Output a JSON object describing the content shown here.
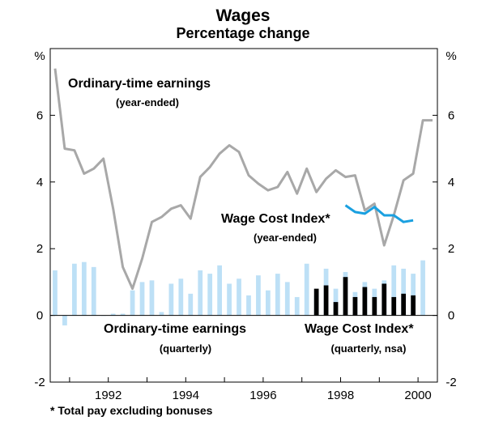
{
  "chart_data": {
    "type": "line+bar",
    "title": "Wages",
    "subtitle": "Percentage change",
    "y_unit_left": "%",
    "y_unit_right": "%",
    "ylim": [
      -2,
      8
    ],
    "xlim": [
      1990.5,
      2000.5
    ],
    "y_ticks": [
      -2,
      0,
      2,
      4,
      6
    ],
    "x_ticks": [
      1992,
      1994,
      1996,
      1998,
      2000
    ],
    "x_tick_labels": [
      "1992",
      "1994",
      "1996",
      "1998",
      "2000"
    ],
    "y_tick_labels": [
      "-2",
      "0",
      "2",
      "4",
      "6"
    ],
    "series": [
      {
        "name": "Ordinary-time earnings (year-ended)",
        "kind": "line",
        "color": "#a8a8a8",
        "x": [
          1990.625,
          1990.875,
          1991.125,
          1991.375,
          1991.625,
          1991.875,
          1992.125,
          1992.375,
          1992.625,
          1992.875,
          1993.125,
          1993.375,
          1993.625,
          1993.875,
          1994.125,
          1994.375,
          1994.625,
          1994.875,
          1995.125,
          1995.375,
          1995.625,
          1995.875,
          1996.125,
          1996.375,
          1996.625,
          1996.875,
          1997.125,
          1997.375,
          1997.625,
          1997.875,
          1998.125,
          1998.375,
          1998.625,
          1998.875,
          1999.125,
          1999.375,
          1999.625,
          1999.875,
          2000.125,
          2000.375
        ],
        "values": [
          7.4,
          5.0,
          4.95,
          4.25,
          4.4,
          4.7,
          3.2,
          1.45,
          0.8,
          1.7,
          2.8,
          2.95,
          3.2,
          3.3,
          2.9,
          4.15,
          4.45,
          4.85,
          5.1,
          4.9,
          4.2,
          3.95,
          3.75,
          3.85,
          4.3,
          3.65,
          4.4,
          3.7,
          4.1,
          4.35,
          4.15,
          4.2,
          3.15,
          3.35,
          2.1,
          3.0,
          4.05,
          4.25,
          5.85,
          5.85
        ]
      },
      {
        "name": "Wage Cost Index* (year-ended)",
        "kind": "line",
        "color": "#1aa0e0",
        "x": [
          1998.125,
          1998.375,
          1998.625,
          1998.875,
          1999.125,
          1999.375,
          1999.625,
          1999.875
        ],
        "values": [
          3.3,
          3.1,
          3.05,
          3.25,
          3.0,
          3.0,
          2.8,
          2.85
        ]
      },
      {
        "name": "Ordinary-time earnings (quarterly)",
        "kind": "bar",
        "color": "#bde0f6",
        "x": [
          1990.625,
          1990.875,
          1991.125,
          1991.375,
          1991.625,
          1991.875,
          1992.125,
          1992.375,
          1992.625,
          1992.875,
          1993.125,
          1993.375,
          1993.625,
          1993.875,
          1994.125,
          1994.375,
          1994.625,
          1994.875,
          1995.125,
          1995.375,
          1995.625,
          1995.875,
          1996.125,
          1996.375,
          1996.625,
          1996.875,
          1997.125,
          1997.375,
          1997.625,
          1997.875,
          1998.125,
          1998.375,
          1998.625,
          1998.875,
          1999.125,
          1999.375,
          1999.625,
          1999.875,
          2000.125
        ],
        "values": [
          1.35,
          -0.3,
          1.55,
          1.6,
          1.45,
          0.0,
          0.05,
          0.05,
          0.75,
          1.0,
          1.05,
          0.1,
          0.95,
          1.1,
          0.65,
          1.35,
          1.25,
          1.5,
          0.95,
          1.1,
          0.6,
          1.2,
          0.75,
          1.25,
          1.0,
          0.55,
          1.55,
          0.6,
          1.4,
          0.8,
          1.3,
          0.7,
          1.0,
          0.8,
          1.05,
          1.5,
          1.4,
          1.25,
          1.65
        ]
      },
      {
        "name": "Wage Cost Index* (quarterly, nsa)",
        "kind": "bar",
        "color": "#000000",
        "x": [
          1997.375,
          1997.625,
          1997.875,
          1998.125,
          1998.375,
          1998.625,
          1998.875,
          1999.125,
          1999.375,
          1999.625,
          1999.875
        ],
        "values": [
          0.8,
          0.9,
          0.4,
          1.15,
          0.55,
          0.85,
          0.55,
          0.95,
          0.55,
          0.65,
          0.6
        ]
      }
    ],
    "annotations": {
      "ote_year": "Ordinary-time earnings",
      "ote_year_sub": "(year-ended)",
      "wci_year": "Wage Cost Index*",
      "wci_year_sub": "(year-ended)",
      "ote_q": "Ordinary-time earnings",
      "ote_q_sub": "(quarterly)",
      "wci_q": "Wage Cost Index*",
      "wci_q_sub": "(quarterly, nsa)"
    },
    "footnote": "* Total pay excluding bonuses"
  }
}
